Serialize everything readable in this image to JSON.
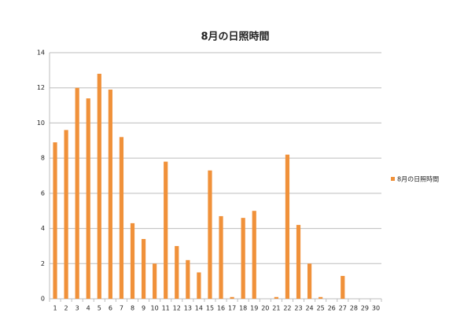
{
  "chart_data": {
    "type": "bar",
    "title": "8月の日照時間",
    "categories": [
      1,
      2,
      3,
      4,
      5,
      6,
      7,
      8,
      9,
      10,
      11,
      12,
      13,
      14,
      15,
      16,
      17,
      18,
      19,
      20,
      21,
      22,
      23,
      24,
      25,
      26,
      27,
      28,
      29,
      30
    ],
    "series": [
      {
        "name": "8月の日照時間",
        "color": "#f0913a",
        "values": [
          8.9,
          9.6,
          12.0,
          11.4,
          12.8,
          11.9,
          9.2,
          4.3,
          3.4,
          2.0,
          7.8,
          3.0,
          2.2,
          1.5,
          7.3,
          4.7,
          0.1,
          4.6,
          5.0,
          0,
          0.1,
          8.2,
          4.2,
          2.0,
          0.1,
          0,
          1.3,
          0,
          0,
          0
        ]
      }
    ],
    "ylim": [
      0,
      14
    ],
    "yticks": [
      0,
      2,
      4,
      6,
      8,
      10,
      12,
      14
    ],
    "grid": true,
    "legend": "right"
  }
}
